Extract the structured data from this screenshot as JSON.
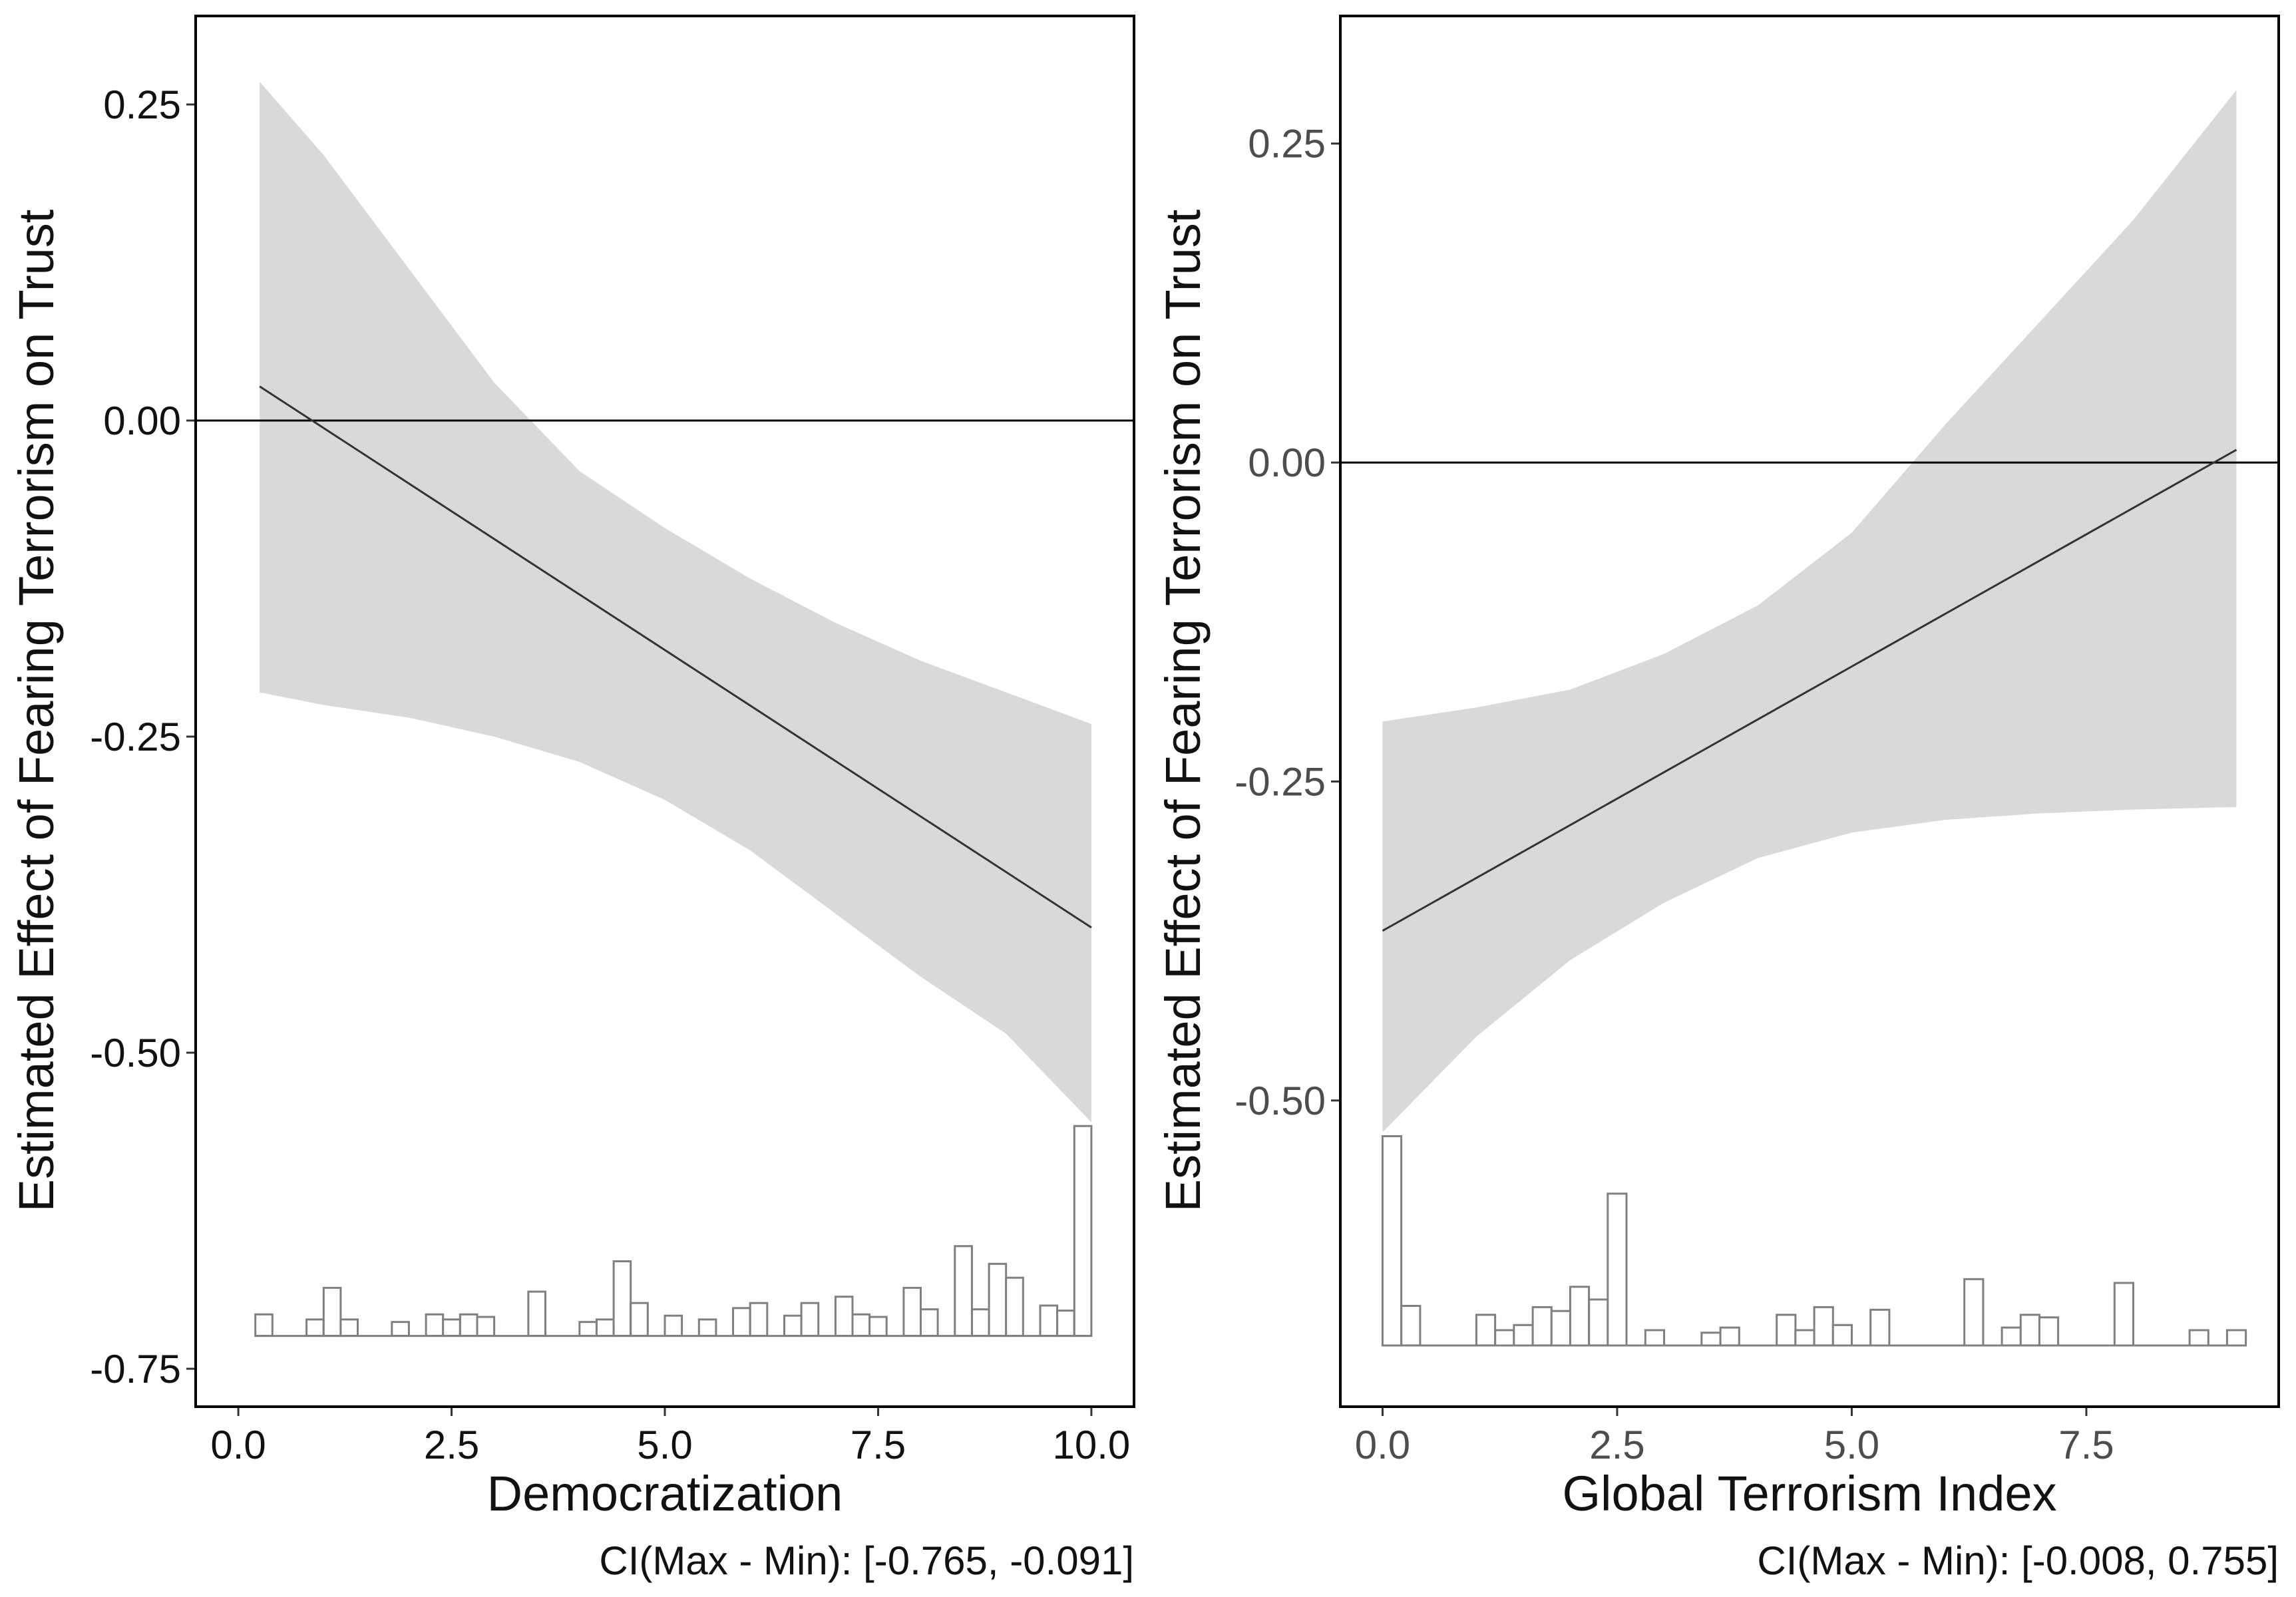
{
  "chart_data": [
    {
      "type": "line",
      "xlabel": "Democratization",
      "ylabel": "Estimated Effect of Fearing Terrorism on Trust",
      "caption": "CI(Max - Min): [-0.765, -0.091]",
      "xlim": [
        -0.5,
        10.5
      ],
      "ylim": [
        -0.78,
        0.32
      ],
      "xticks": [
        0.0,
        2.5,
        5.0,
        7.5,
        10.0
      ],
      "xtick_labels": [
        "0.0",
        "2.5",
        "5.0",
        "7.5",
        "10.0"
      ],
      "yticks": [
        0.25,
        0.0,
        -0.25,
        -0.5,
        -0.75
      ],
      "ytick_labels": [
        "0.25",
        "0.00",
        "-0.25",
        "-0.50",
        "-0.75"
      ],
      "reference_line": 0.0,
      "effect_line": {
        "x": [
          0.25,
          10.0
        ],
        "y": [
          0.027,
          -0.401
        ]
      },
      "ci_band": {
        "x": [
          0.25,
          1.0,
          2.0,
          3.0,
          4.0,
          5.0,
          6.0,
          7.0,
          8.0,
          9.0,
          10.0
        ],
        "lower": [
          -0.215,
          -0.225,
          -0.235,
          -0.25,
          -0.27,
          -0.3,
          -0.34,
          -0.39,
          -0.44,
          -0.485,
          -0.555
        ],
        "upper": [
          0.268,
          0.21,
          0.12,
          0.03,
          -0.04,
          -0.085,
          -0.125,
          -0.16,
          -0.19,
          -0.215,
          -0.24
        ]
      },
      "histogram": {
        "baseline": -0.724,
        "bin_width": 0.2,
        "bins": [
          {
            "x": 0.3,
            "top": -0.707
          },
          {
            "x": 0.9,
            "top": -0.711
          },
          {
            "x": 1.1,
            "top": -0.686
          },
          {
            "x": 1.3,
            "top": -0.711
          },
          {
            "x": 1.9,
            "top": -0.713
          },
          {
            "x": 2.3,
            "top": -0.707
          },
          {
            "x": 2.5,
            "top": -0.711
          },
          {
            "x": 2.7,
            "top": -0.707
          },
          {
            "x": 2.9,
            "top": -0.709
          },
          {
            "x": 3.5,
            "top": -0.689
          },
          {
            "x": 4.1,
            "top": -0.713
          },
          {
            "x": 4.3,
            "top": -0.711
          },
          {
            "x": 4.5,
            "top": -0.665
          },
          {
            "x": 4.7,
            "top": -0.698
          },
          {
            "x": 5.1,
            "top": -0.708
          },
          {
            "x": 5.5,
            "top": -0.711
          },
          {
            "x": 5.9,
            "top": -0.702
          },
          {
            "x": 6.1,
            "top": -0.698
          },
          {
            "x": 6.5,
            "top": -0.708
          },
          {
            "x": 6.7,
            "top": -0.698
          },
          {
            "x": 7.1,
            "top": -0.693
          },
          {
            "x": 7.3,
            "top": -0.707
          },
          {
            "x": 7.5,
            "top": -0.709
          },
          {
            "x": 7.9,
            "top": -0.686
          },
          {
            "x": 8.1,
            "top": -0.703
          },
          {
            "x": 8.5,
            "top": -0.653
          },
          {
            "x": 8.7,
            "top": -0.703
          },
          {
            "x": 8.9,
            "top": -0.667
          },
          {
            "x": 9.1,
            "top": -0.678
          },
          {
            "x": 9.5,
            "top": -0.7
          },
          {
            "x": 9.7,
            "top": -0.704
          },
          {
            "x": 9.9,
            "top": -0.558
          }
        ]
      }
    },
    {
      "type": "line",
      "xlabel": "Global Terrorism Index",
      "ylabel": "Estimated Effect of Fearing Terrorism on Trust",
      "caption": "CI(Max - Min): [-0.008, 0.755]",
      "xlim": [
        -0.45,
        9.55
      ],
      "ylim": [
        -0.74,
        0.35
      ],
      "xticks": [
        0.0,
        2.5,
        5.0,
        7.5
      ],
      "xtick_labels": [
        "0.0",
        "2.5",
        "5.0",
        "7.5"
      ],
      "yticks": [
        0.25,
        0.0,
        -0.25,
        -0.5
      ],
      "ytick_labels": [
        "0.25",
        "0.00",
        "-0.25",
        "-0.50"
      ],
      "reference_line": 0.0,
      "effect_line": {
        "x": [
          0.0,
          9.1
        ],
        "y": [
          -0.367,
          0.01
        ]
      },
      "ci_band": {
        "x": [
          0.0,
          1.0,
          2.0,
          3.0,
          4.0,
          5.0,
          6.0,
          7.0,
          8.0,
          9.1
        ],
        "lower": [
          -0.525,
          -0.45,
          -0.39,
          -0.345,
          -0.31,
          -0.29,
          -0.28,
          -0.275,
          -0.272,
          -0.27
        ],
        "upper": [
          -0.203,
          -0.192,
          -0.178,
          -0.15,
          -0.112,
          -0.055,
          0.03,
          0.11,
          0.19,
          0.292
        ]
      },
      "histogram": {
        "baseline": -0.692,
        "bin_width": 0.2,
        "bins": [
          {
            "x": 0.1,
            "top": -0.528
          },
          {
            "x": 0.3,
            "top": -0.661
          },
          {
            "x": 1.1,
            "top": -0.668
          },
          {
            "x": 1.3,
            "top": -0.68
          },
          {
            "x": 1.5,
            "top": -0.676
          },
          {
            "x": 1.7,
            "top": -0.662
          },
          {
            "x": 1.9,
            "top": -0.665
          },
          {
            "x": 2.1,
            "top": -0.646
          },
          {
            "x": 2.3,
            "top": -0.656
          },
          {
            "x": 2.5,
            "top": -0.573
          },
          {
            "x": 2.9,
            "top": -0.68
          },
          {
            "x": 3.5,
            "top": -0.682
          },
          {
            "x": 3.7,
            "top": -0.678
          },
          {
            "x": 4.3,
            "top": -0.668
          },
          {
            "x": 4.5,
            "top": -0.68
          },
          {
            "x": 4.7,
            "top": -0.662
          },
          {
            "x": 4.9,
            "top": -0.676
          },
          {
            "x": 5.3,
            "top": -0.664
          },
          {
            "x": 6.3,
            "top": -0.64
          },
          {
            "x": 6.7,
            "top": -0.678
          },
          {
            "x": 6.9,
            "top": -0.668
          },
          {
            "x": 7.1,
            "top": -0.67
          },
          {
            "x": 7.9,
            "top": -0.643
          },
          {
            "x": 8.7,
            "top": -0.68
          },
          {
            "x": 9.1,
            "top": -0.68
          }
        ]
      }
    }
  ]
}
